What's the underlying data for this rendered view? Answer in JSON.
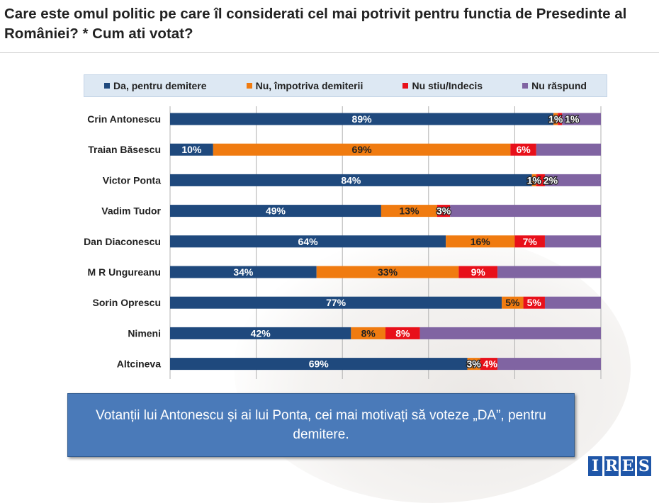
{
  "title": "Care este omul politic pe care îl considerati cel mai potrivit pentru functia de Presedinte al României? * Cum ati votat?",
  "chart_data": {
    "type": "bar",
    "orientation": "horizontal",
    "stacked": true,
    "categories": [
      "Crin Antonescu",
      "Traian Băsescu",
      "Victor Ponta",
      "Vadim Tudor",
      "Dan Diaconescu",
      "M R Ungureanu",
      "Sorin Oprescu",
      "Nimeni",
      "Altcineva"
    ],
    "series": [
      {
        "name": "Da, pentru demitere",
        "color": "#1f497d",
        "values": [
          89,
          10,
          84,
          49,
          64,
          34,
          77,
          42,
          69
        ]
      },
      {
        "name": "Nu, împotriva demiterii",
        "color": "#f07b10",
        "values": [
          1,
          69,
          1,
          13,
          16,
          33,
          5,
          8,
          3
        ]
      },
      {
        "name": "Nu stiu/Indecis",
        "color": "#e8101a",
        "values": [
          1,
          6,
          2,
          3,
          7,
          9,
          5,
          8,
          4
        ]
      },
      {
        "name": "Nu răspund",
        "color": "#8064a2",
        "values": [
          9,
          15,
          13,
          35,
          13,
          24,
          13,
          42,
          24
        ]
      }
    ],
    "xlim": [
      0,
      100
    ],
    "legend": "top"
  },
  "note": "Votanții lui Antonescu și ai lui Ponta, cei mai motivați să voteze „DA”, pentru demitere.",
  "logo": {
    "letters": [
      "I",
      "R",
      "E",
      "S"
    ]
  }
}
